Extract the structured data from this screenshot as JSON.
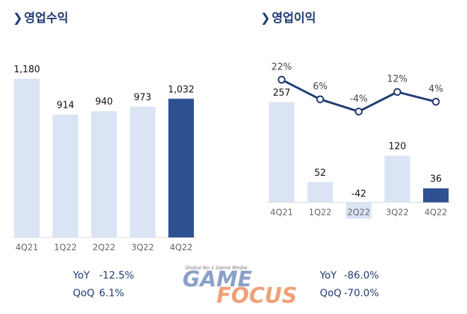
{
  "chart_data": [
    {
      "type": "bar",
      "title": "영업수익",
      "categories": [
        "4Q21",
        "1Q22",
        "2Q22",
        "3Q22",
        "4Q22"
      ],
      "values": [
        1180,
        914,
        940,
        973,
        1032
      ],
      "value_labels": [
        "1,180",
        "914",
        "940",
        "973",
        "1,032"
      ],
      "highlight_index": 4,
      "ylim": [
        0,
        1450
      ],
      "grid": false,
      "colors": {
        "bar": "#dbe4f5",
        "highlight": "#2e5193"
      },
      "stats": [
        {
          "label": "YoY",
          "value": "-12.5%"
        },
        {
          "label": "QoQ",
          "value": "6.1%"
        }
      ]
    },
    {
      "type": "bar",
      "title": "영업이익",
      "categories": [
        "4Q21",
        "1Q22",
        "2Q22",
        "3Q22",
        "4Q22"
      ],
      "values": [
        257,
        52,
        -42,
        120,
        36
      ],
      "value_labels": [
        "257",
        "52",
        "-42",
        "120",
        "36"
      ],
      "highlight_index": 4,
      "ylim": [
        -90,
        410
      ],
      "grid": false,
      "colors": {
        "bar": "#dbe4f5",
        "highlight": "#2e5193",
        "line": "#1f3b73"
      },
      "margin_series": {
        "values": [
          22,
          6,
          -4,
          12,
          4
        ],
        "labels": [
          "22%",
          "6%",
          "-4%",
          "12%",
          "4%"
        ]
      },
      "stats": [
        {
          "label": "YoY",
          "value": "-86.0%"
        },
        {
          "label": "QoQ",
          "value": "-70.0%"
        }
      ]
    }
  ],
  "watermark": {
    "tagline": "Global No.1 Game Media",
    "word1": "GAME",
    "word2": "FOCUS",
    "colors": {
      "word1": "#8aa0c8",
      "word2": "#f0a077"
    }
  }
}
